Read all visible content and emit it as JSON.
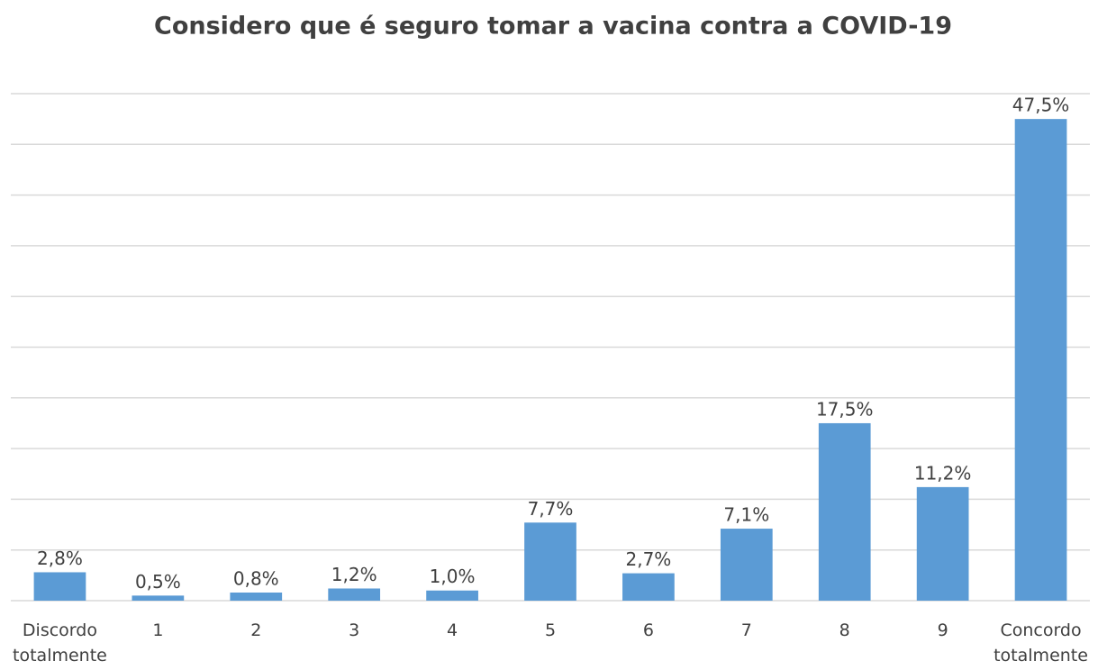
{
  "chart_data": {
    "type": "bar",
    "title": "Considero que é seguro tomar a vacina contra a COVID-19",
    "categories": [
      "Discordo totalmente",
      "1",
      "2",
      "3",
      "4",
      "5",
      "6",
      "7",
      "8",
      "9",
      "Concordo totalmente"
    ],
    "values": [
      2.8,
      0.5,
      0.8,
      1.2,
      1.0,
      7.7,
      2.7,
      7.1,
      17.5,
      11.2,
      47.5
    ],
    "value_labels": [
      "2,8%",
      "0,5%",
      "0,8%",
      "1,2%",
      "1,0%",
      "7,7%",
      "2,7%",
      "7,1%",
      "17,5%",
      "11,2%",
      "47,5%"
    ],
    "color": "#5b9bd5",
    "ylim": [
      0,
      50
    ],
    "yticks": [
      0,
      5,
      10,
      15,
      20,
      25,
      30,
      35,
      40,
      45,
      50
    ],
    "grid": true
  }
}
